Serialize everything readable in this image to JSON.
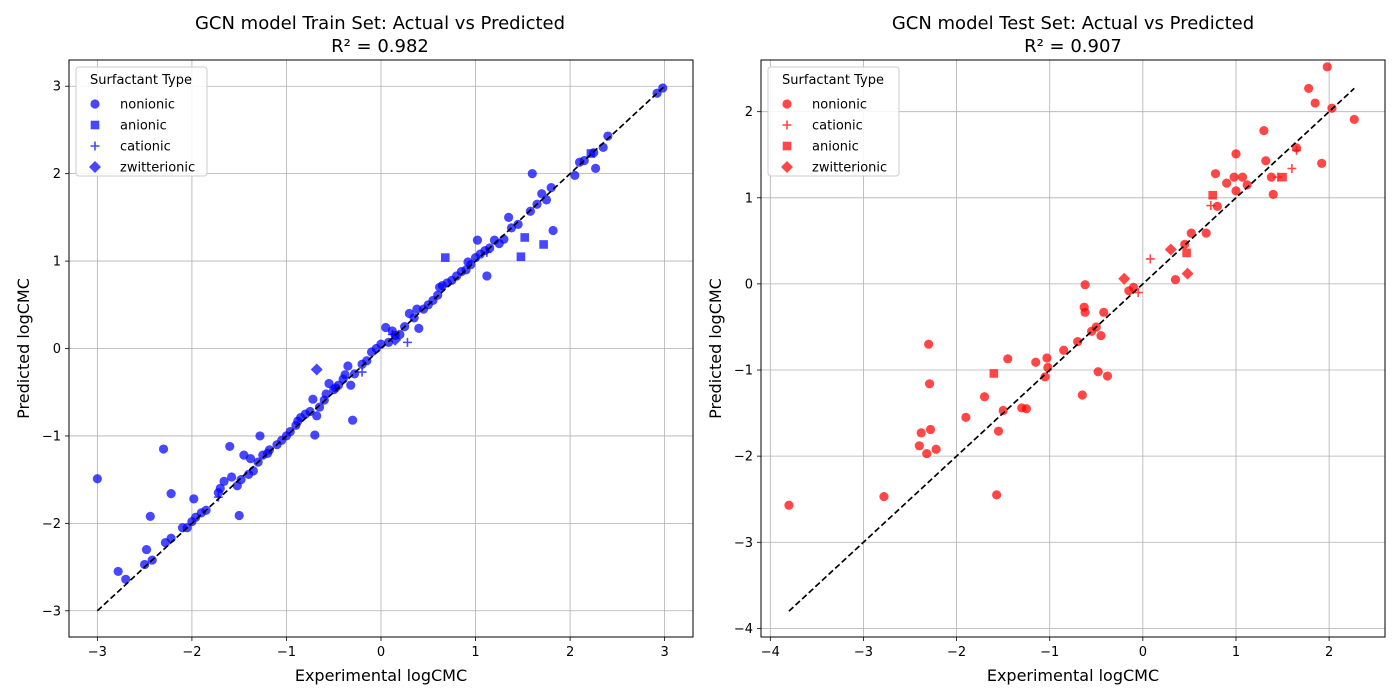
{
  "colors": {
    "train_marker": "#0000ff",
    "test_marker": "#ff0000",
    "ideal_line": "#000000",
    "grid": "#b0b0b0"
  },
  "chart_data": [
    {
      "type": "scatter",
      "title_line1": "GCN model Train Set: Actual vs Predicted",
      "title_line2": "R² = 0.982",
      "xlabel": "Experimental logCMC",
      "ylabel": "Predicted logCMC",
      "xlim": [
        -3.3,
        3.3
      ],
      "ylim": [
        -3.3,
        3.3
      ],
      "xticks": [
        -3,
        -2,
        -1,
        0,
        1,
        2,
        3
      ],
      "yticks": [
        -3,
        -2,
        -1,
        0,
        1,
        2,
        3
      ],
      "xtick_labels": [
        "−3",
        "−2",
        "−1",
        "0",
        "1",
        "2",
        "3"
      ],
      "ytick_labels": [
        "−3",
        "−2",
        "−1",
        "0",
        "1",
        "2",
        "3"
      ],
      "grid": true,
      "legend_title": "Surfactant Type",
      "legend_position": "top-left",
      "ideal_line": [
        [
          -3,
          -3
        ],
        [
          3,
          3
        ]
      ],
      "series": [
        {
          "name": "nonionic",
          "marker": "circle",
          "points": [
            [
              -3.0,
              -1.49
            ],
            [
              -2.78,
              -2.55
            ],
            [
              -2.7,
              -2.64
            ],
            [
              -2.5,
              -2.47
            ],
            [
              -2.48,
              -2.3
            ],
            [
              -2.42,
              -2.42
            ],
            [
              -2.44,
              -1.92
            ],
            [
              -2.3,
              -1.15
            ],
            [
              -2.28,
              -2.22
            ],
            [
              -2.22,
              -2.17
            ],
            [
              -2.22,
              -1.66
            ],
            [
              -2.1,
              -2.05
            ],
            [
              -2.05,
              -2.05
            ],
            [
              -2.0,
              -1.98
            ],
            [
              -1.98,
              -1.72
            ],
            [
              -1.96,
              -1.93
            ],
            [
              -1.9,
              -1.88
            ],
            [
              -1.85,
              -1.85
            ],
            [
              -1.72,
              -1.65
            ],
            [
              -1.7,
              -1.6
            ],
            [
              -1.66,
              -1.52
            ],
            [
              -1.6,
              -1.12
            ],
            [
              -1.58,
              -1.47
            ],
            [
              -1.52,
              -1.57
            ],
            [
              -1.5,
              -1.91
            ],
            [
              -1.48,
              -1.5
            ],
            [
              -1.45,
              -1.22
            ],
            [
              -1.4,
              -1.44
            ],
            [
              -1.38,
              -1.26
            ],
            [
              -1.35,
              -1.4
            ],
            [
              -1.3,
              -1.3
            ],
            [
              -1.28,
              -1.0
            ],
            [
              -1.25,
              -1.22
            ],
            [
              -1.2,
              -1.2
            ],
            [
              -1.18,
              -1.16
            ],
            [
              -1.1,
              -1.1
            ],
            [
              -1.05,
              -1.05
            ],
            [
              -1.0,
              -1.0
            ],
            [
              -0.96,
              -0.95
            ],
            [
              -0.9,
              -0.88
            ],
            [
              -0.88,
              -0.83
            ],
            [
              -0.85,
              -0.79
            ],
            [
              -0.8,
              -0.75
            ],
            [
              -0.75,
              -0.72
            ],
            [
              -0.72,
              -0.58
            ],
            [
              -0.7,
              -0.99
            ],
            [
              -0.68,
              -0.77
            ],
            [
              -0.65,
              -0.67
            ],
            [
              -0.6,
              -0.59
            ],
            [
              -0.58,
              -0.52
            ],
            [
              -0.55,
              -0.4
            ],
            [
              -0.5,
              -0.47
            ],
            [
              -0.48,
              -0.45
            ],
            [
              -0.45,
              -0.42
            ],
            [
              -0.4,
              -0.35
            ],
            [
              -0.38,
              -0.3
            ],
            [
              -0.35,
              -0.2
            ],
            [
              -0.32,
              -0.42
            ],
            [
              -0.3,
              -0.82
            ],
            [
              -0.28,
              -0.29
            ],
            [
              -0.2,
              -0.18
            ],
            [
              -0.15,
              -0.14
            ],
            [
              -0.1,
              -0.04
            ],
            [
              -0.05,
              0.0
            ],
            [
              0.0,
              0.05
            ],
            [
              0.05,
              0.24
            ],
            [
              0.08,
              0.07
            ],
            [
              0.12,
              0.2
            ],
            [
              0.15,
              0.15
            ],
            [
              0.2,
              0.16
            ],
            [
              0.25,
              0.25
            ],
            [
              0.3,
              0.4
            ],
            [
              0.35,
              0.35
            ],
            [
              0.38,
              0.45
            ],
            [
              0.4,
              0.23
            ],
            [
              0.45,
              0.45
            ],
            [
              0.5,
              0.5
            ],
            [
              0.55,
              0.55
            ],
            [
              0.6,
              0.61
            ],
            [
              0.62,
              0.7
            ],
            [
              0.65,
              0.72
            ],
            [
              0.7,
              0.75
            ],
            [
              0.75,
              0.78
            ],
            [
              0.8,
              0.83
            ],
            [
              0.85,
              0.88
            ],
            [
              0.9,
              0.9
            ],
            [
              0.92,
              0.99
            ],
            [
              0.95,
              0.96
            ],
            [
              1.0,
              1.04
            ],
            [
              1.02,
              1.24
            ],
            [
              1.05,
              1.08
            ],
            [
              1.1,
              1.12
            ],
            [
              1.12,
              0.83
            ],
            [
              1.15,
              1.15
            ],
            [
              1.2,
              1.24
            ],
            [
              1.25,
              1.2
            ],
            [
              1.3,
              1.25
            ],
            [
              1.35,
              1.5
            ],
            [
              1.38,
              1.38
            ],
            [
              1.45,
              1.42
            ],
            [
              1.58,
              1.57
            ],
            [
              1.6,
              2.0
            ],
            [
              1.65,
              1.65
            ],
            [
              1.7,
              1.77
            ],
            [
              1.75,
              1.7
            ],
            [
              1.8,
              1.84
            ],
            [
              1.82,
              1.35
            ],
            [
              2.05,
              1.98
            ],
            [
              2.1,
              2.13
            ],
            [
              2.15,
              2.15
            ],
            [
              2.25,
              2.24
            ],
            [
              2.27,
              2.06
            ],
            [
              2.35,
              2.3
            ],
            [
              2.4,
              2.43
            ],
            [
              2.92,
              2.92
            ],
            [
              2.98,
              2.98
            ]
          ]
        },
        {
          "name": "anionic",
          "marker": "square",
          "points": [
            [
              0.68,
              1.04
            ],
            [
              1.48,
              1.05
            ],
            [
              1.52,
              1.27
            ],
            [
              1.72,
              1.19
            ],
            [
              2.22,
              2.23
            ]
          ]
        },
        {
          "name": "cationic",
          "marker": "plus",
          "points": [
            [
              0.28,
              0.07
            ],
            [
              -0.2,
              -0.27
            ],
            [
              1.12,
              1.1
            ],
            [
              0.12,
              0.16
            ],
            [
              -1.72,
              -1.7
            ]
          ]
        },
        {
          "name": "zwitterionic",
          "marker": "diamond",
          "points": [
            [
              -0.68,
              -0.24
            ],
            [
              0.15,
              0.1
            ]
          ]
        }
      ]
    },
    {
      "type": "scatter",
      "title_line1": "GCN model Test Set: Actual vs Predicted",
      "title_line2": "R² = 0.907",
      "xlabel": "Experimental logCMC",
      "ylabel": "Predicted logCMC",
      "xlim": [
        -4.1,
        2.6
      ],
      "ylim": [
        -4.1,
        2.6
      ],
      "xticks": [
        -4,
        -3,
        -2,
        -1,
        0,
        1,
        2
      ],
      "yticks": [
        -4,
        -3,
        -2,
        -1,
        0,
        1,
        2
      ],
      "xtick_labels": [
        "−4",
        "−3",
        "−2",
        "−1",
        "0",
        "1",
        "2"
      ],
      "ytick_labels": [
        "−4",
        "−3",
        "−2",
        "−1",
        "0",
        "1",
        "2"
      ],
      "grid": true,
      "legend_title": "Surfactant Type",
      "legend_position": "top-left",
      "ideal_line": [
        [
          -3.8,
          -3.8
        ],
        [
          2.27,
          2.27
        ]
      ],
      "series": [
        {
          "name": "nonionic",
          "marker": "circle",
          "points": [
            [
              -3.8,
              -2.57
            ],
            [
              -2.78,
              -2.47
            ],
            [
              -2.4,
              -1.88
            ],
            [
              -2.38,
              -1.73
            ],
            [
              -2.32,
              -1.97
            ],
            [
              -2.3,
              -0.7
            ],
            [
              -2.29,
              -1.16
            ],
            [
              -2.28,
              -1.69
            ],
            [
              -2.22,
              -1.92
            ],
            [
              -1.9,
              -1.55
            ],
            [
              -1.7,
              -1.31
            ],
            [
              -1.57,
              -2.45
            ],
            [
              -1.55,
              -1.71
            ],
            [
              -1.5,
              -1.47
            ],
            [
              -1.45,
              -0.87
            ],
            [
              -1.3,
              -1.44
            ],
            [
              -1.25,
              -1.45
            ],
            [
              -1.15,
              -0.91
            ],
            [
              -1.05,
              -1.08
            ],
            [
              -1.03,
              -0.86
            ],
            [
              -1.02,
              -0.97
            ],
            [
              -0.85,
              -0.77
            ],
            [
              -0.7,
              -0.67
            ],
            [
              -0.65,
              -1.29
            ],
            [
              -0.63,
              -0.27
            ],
            [
              -0.62,
              -0.01
            ],
            [
              -0.62,
              -0.33
            ],
            [
              -0.55,
              -0.55
            ],
            [
              -0.5,
              -0.5
            ],
            [
              -0.48,
              -1.02
            ],
            [
              -0.45,
              -0.6
            ],
            [
              -0.42,
              -0.33
            ],
            [
              -0.38,
              -1.07
            ],
            [
              -0.1,
              -0.04
            ],
            [
              -0.15,
              -0.08
            ],
            [
              0.35,
              0.05
            ],
            [
              0.45,
              0.46
            ],
            [
              0.52,
              0.59
            ],
            [
              0.68,
              0.59
            ],
            [
              0.78,
              1.28
            ],
            [
              0.8,
              0.9
            ],
            [
              0.9,
              1.17
            ],
            [
              0.98,
              1.24
            ],
            [
              1.0,
              1.51
            ],
            [
              1.0,
              1.08
            ],
            [
              1.07,
              1.24
            ],
            [
              1.12,
              1.15
            ],
            [
              1.3,
              1.78
            ],
            [
              1.32,
              1.43
            ],
            [
              1.38,
              1.24
            ],
            [
              1.4,
              1.04
            ],
            [
              1.65,
              1.58
            ],
            [
              1.78,
              2.27
            ],
            [
              1.85,
              2.1
            ],
            [
              1.92,
              1.4
            ],
            [
              1.98,
              2.52
            ],
            [
              2.03,
              2.04
            ],
            [
              2.27,
              1.91
            ]
          ]
        },
        {
          "name": "cationic",
          "marker": "plus",
          "points": [
            [
              0.08,
              0.29
            ],
            [
              -0.05,
              -0.1
            ],
            [
              0.73,
              0.91
            ],
            [
              1.45,
              1.24
            ],
            [
              1.6,
              1.34
            ],
            [
              1.65,
              1.55
            ]
          ]
        },
        {
          "name": "anionic",
          "marker": "square",
          "points": [
            [
              -1.6,
              -1.04
            ],
            [
              0.47,
              0.36
            ],
            [
              0.75,
              1.03
            ],
            [
              1.5,
              1.24
            ]
          ]
        },
        {
          "name": "zwitterionic",
          "marker": "diamond",
          "points": [
            [
              -0.2,
              0.06
            ],
            [
              0.3,
              0.4
            ],
            [
              0.48,
              0.12
            ]
          ]
        }
      ]
    }
  ]
}
